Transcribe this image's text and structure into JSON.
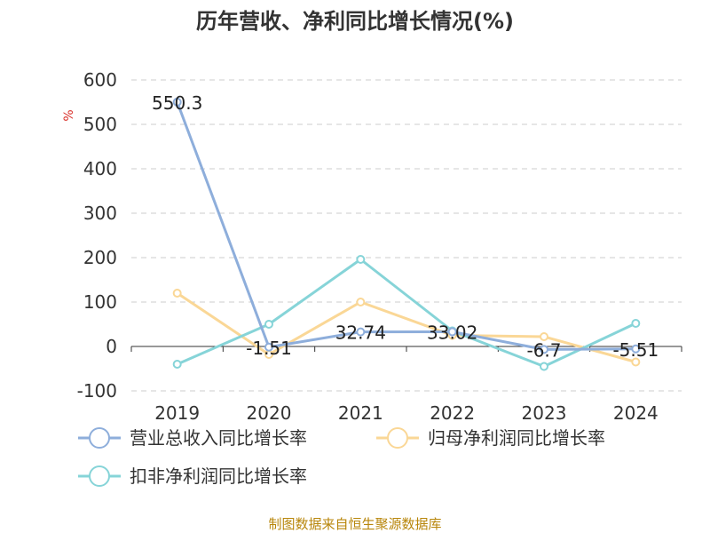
{
  "chart_data": {
    "type": "line",
    "title": "历年营收、净利同比增长情况(%)",
    "ylabel": "%",
    "categories": [
      "2019",
      "2020",
      "2021",
      "2022",
      "2023",
      "2024"
    ],
    "ylim": [
      -100,
      600
    ],
    "yticks": [
      600,
      500,
      400,
      300,
      200,
      100,
      0,
      -100
    ],
    "grid": true,
    "legend_position": "bottom",
    "series": [
      {
        "name": "营业总收入同比增长率",
        "color": "#8eaedb",
        "values": [
          550.3,
          -1.51,
          32.74,
          33.02,
          -6.7,
          -5.51
        ],
        "labels": [
          "550.3",
          "-1.51",
          "32.74",
          "33.02",
          "-6.7",
          "-5.51"
        ]
      },
      {
        "name": "归母净利润同比增长率",
        "color": "#fad796",
        "values": [
          120,
          -18,
          100,
          25,
          22,
          -35
        ]
      },
      {
        "name": "扣非净利润同比增长率",
        "color": "#86d4d8",
        "values": [
          -40,
          50,
          196,
          35,
          -45,
          52
        ]
      }
    ]
  },
  "footer": {
    "source": "制图数据来自恒生聚源数据库"
  }
}
